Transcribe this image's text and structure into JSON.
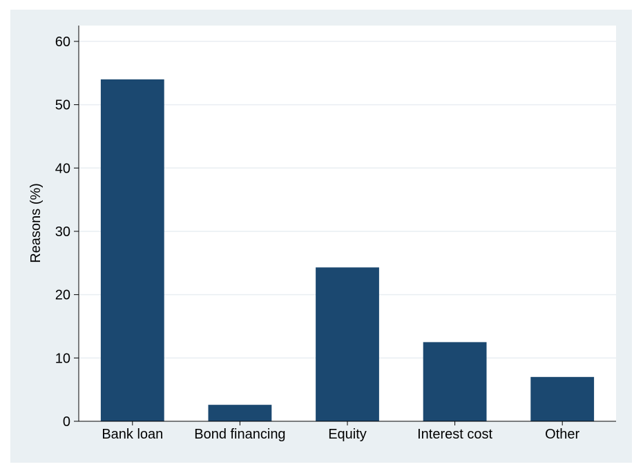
{
  "chart_data": {
    "type": "bar",
    "ylabel": "Reasons (%)",
    "categories": [
      "Bank loan",
      "Bond financing",
      "Equity",
      "Interest cost",
      "Other"
    ],
    "values": [
      54.0,
      2.6,
      24.3,
      12.5,
      7.0
    ],
    "ylim": [
      0,
      62.5
    ],
    "yticks": [
      0,
      10,
      20,
      30,
      40,
      50,
      60
    ],
    "grid": true,
    "bar_color": "#1b4870",
    "background_color": "#eaf0f3",
    "plot_background": "#ffffff",
    "grid_color": "#e9eef2"
  }
}
